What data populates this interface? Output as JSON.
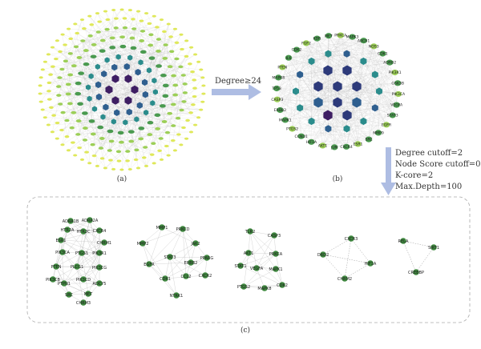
{
  "figure": {
    "panel_a_label": "(a)",
    "panel_b_label": "(b)",
    "panel_c_label": "(c)",
    "step1_text": "Degree≥24",
    "step2_lines": [
      "Degree cutoff=2",
      "Node Score cutoff=0.2",
      "K-core=2",
      "Max.Depth=100"
    ]
  },
  "colors": {
    "arrow": "#aebde3",
    "edge": "#bdbdbd",
    "yellow": "#dfe85a",
    "lightgreen": "#9ccf57",
    "green": "#4a9a4f",
    "teal": "#2b8c8c",
    "blue": "#2f5f8f",
    "navy": "#2d3a7a",
    "purple": "#3e1e63",
    "cluster_node": "#3f8a3f",
    "dashed_border": "#aaaaaa"
  },
  "hub_labels": [
    "PIK3CA",
    "VEGFA",
    "STAT3",
    "EGFR",
    "MMP9",
    "SRC",
    "ESR1",
    "CXCR4",
    "JUN",
    "AKT1",
    "HIF1A",
    "CCND1",
    "PTGS2",
    "MAPK1",
    "ERBB2",
    "CASP3",
    "TP53",
    "MAPK8",
    "PTEN",
    "IL6",
    "CDK2",
    "FGF2",
    "KDR",
    "MET",
    "PRKCA",
    "MAPK3",
    "ABCB1",
    "NOS3",
    "CDK1",
    "ADRB2",
    "PIK3R1",
    "GSK3B",
    "BCL2",
    "PARP1",
    "HSP90",
    "JAK2",
    "KIT",
    "CHEK1",
    "CHRM2"
  ],
  "clusters": [
    {
      "labels": [
        "ADRA1B",
        "ADRA2A",
        "HTR2A",
        "HTR2C",
        "CXCR4",
        "ESR1",
        "CHRM1",
        "PIK3CA",
        "PTGS1",
        "PIK3R1",
        "PTEN",
        "PLCG1",
        "PIK3CG",
        "PIK3CB",
        "PIK3CD",
        "ADCY5",
        "PTPN1",
        "SRC",
        "MET",
        "CHRM3"
      ]
    },
    {
      "labels": [
        "MMP1",
        "PRKCD",
        "MMP2",
        "JAK2",
        "STAT3",
        "ERBB2",
        "EGFR",
        "CCL2",
        "CDK1",
        "CXCR2",
        "NTRK1",
        "PPARG"
      ]
    },
    {
      "labels": [
        "TLR2",
        "CASP3",
        "AKT1",
        "PRKCA",
        "STAT1",
        "VEGFA",
        "MAPK1",
        "PTGS2",
        "MAPK8",
        "CDK2"
      ]
    },
    {
      "labels": [
        "CXCR3",
        "DRD2",
        "HIF1A",
        "CHRM2"
      ]
    },
    {
      "labels": [
        "RELA",
        "SIRT1",
        "CREBBP"
      ]
    }
  ]
}
